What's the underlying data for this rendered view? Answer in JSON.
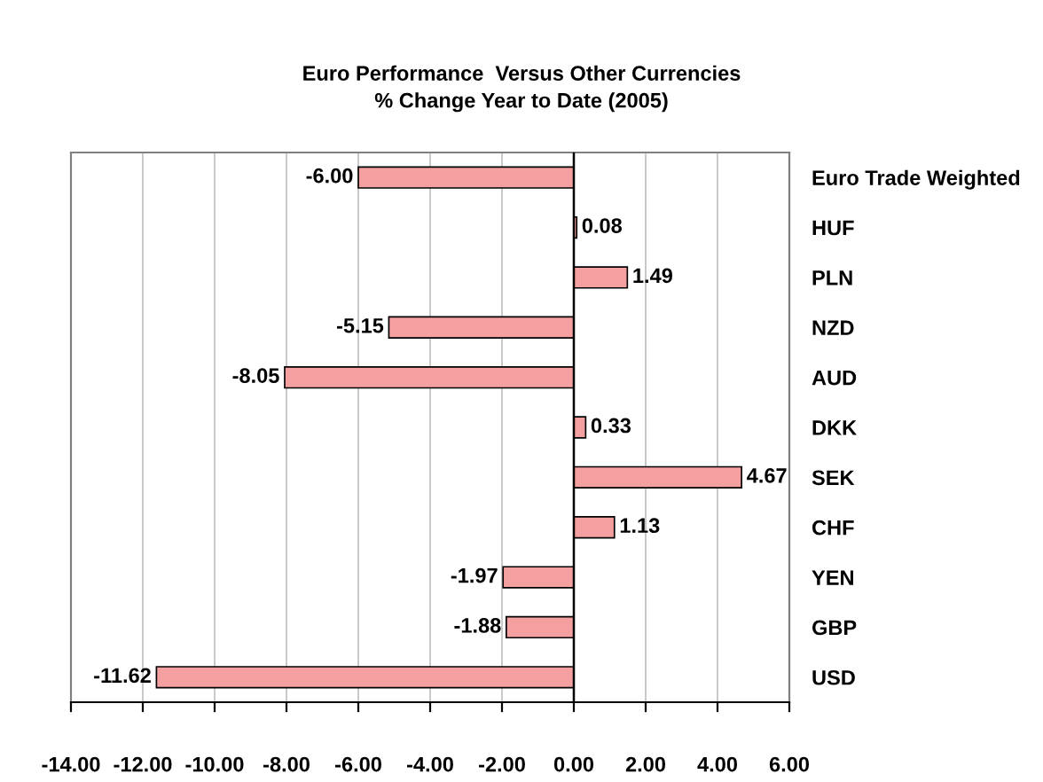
{
  "chart_data": {
    "type": "bar",
    "orientation": "horizontal",
    "title": "Euro Performance  Versus Other Currencies\n% Change Year to Date (2005)",
    "categories": [
      "Euro Trade Weighted",
      "HUF",
      "PLN",
      "NZD",
      "AUD",
      "DKK",
      "SEK",
      "CHF",
      "YEN",
      "GBP",
      "USD"
    ],
    "values": [
      -6.0,
      0.08,
      1.49,
      -5.15,
      -8.05,
      0.33,
      4.67,
      1.13,
      -1.97,
      -1.88,
      -11.62
    ],
    "color": "#f4a0a0",
    "xlim": [
      -14,
      6
    ],
    "xticks": [
      {
        "value": -14,
        "label": "-14.00"
      },
      {
        "value": -12,
        "label": "-12.00"
      },
      {
        "value": -10,
        "label": "-10.00"
      },
      {
        "value": -8,
        "label": "-8.00"
      },
      {
        "value": -6,
        "label": "-6.00"
      },
      {
        "value": -4,
        "label": "-4.00"
      },
      {
        "value": -2,
        "label": "-2.00"
      },
      {
        "value": 0,
        "label": "0.00"
      },
      {
        "value": 2,
        "label": "2.00"
      },
      {
        "value": 4,
        "label": "4.00"
      },
      {
        "value": 6,
        "label": "6.00"
      }
    ],
    "value_labels": [
      "-6.00",
      "0.08",
      "1.49",
      "-5.15",
      "-8.05",
      "0.33",
      "4.67",
      "1.13",
      "-1.97",
      "-1.88",
      "-11.62"
    ],
    "grid": "x",
    "legend": false
  }
}
